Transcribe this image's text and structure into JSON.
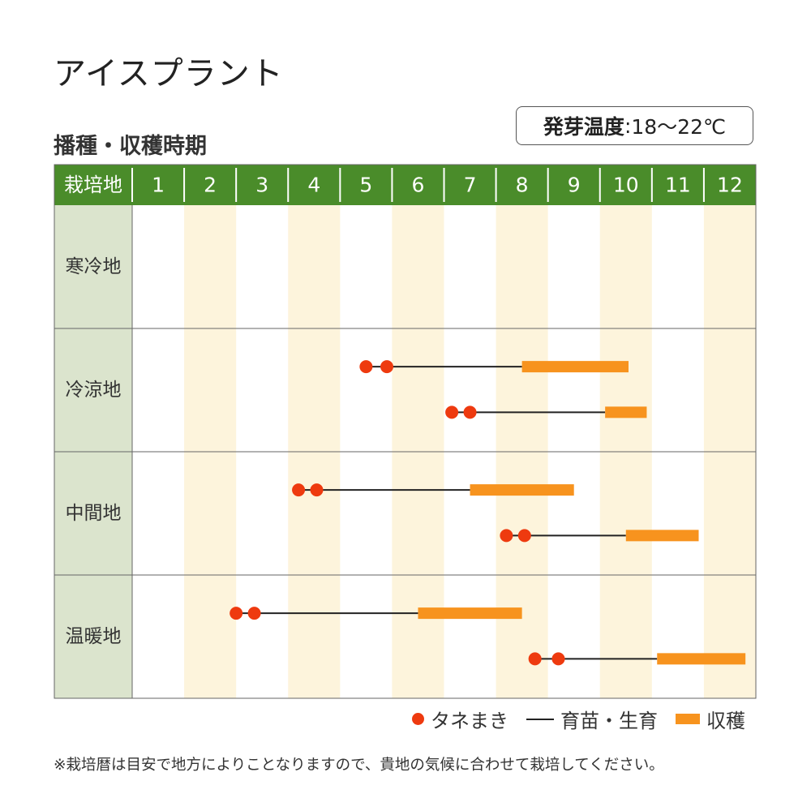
{
  "title": "アイスプラント",
  "temp_box": {
    "label": "発芽温度",
    "sep": ":",
    "value": "18〜22℃"
  },
  "chart_data": {
    "type": "gantt",
    "title": "播種・収穫時期",
    "header_label": "栽培地",
    "months": [
      "1",
      "2",
      "3",
      "4",
      "5",
      "6",
      "7",
      "8",
      "9",
      "10",
      "11",
      "12"
    ],
    "regions": [
      {
        "name": "寒冷地",
        "rows": []
      },
      {
        "name": "冷涼地",
        "rows": [
          {
            "sow": [
              5.5,
              5.9
            ],
            "grow_to": 8.5,
            "harvest": [
              8.5,
              10.55
            ]
          },
          {
            "sow": [
              7.15,
              7.5
            ],
            "grow_to": 10.1,
            "harvest": [
              10.1,
              10.9
            ]
          }
        ]
      },
      {
        "name": "中間地",
        "rows": [
          {
            "sow": [
              4.2,
              4.55
            ],
            "grow_to": 7.5,
            "harvest": [
              7.5,
              9.5
            ]
          },
          {
            "sow": [
              8.2,
              8.55
            ],
            "grow_to": 10.5,
            "harvest": [
              10.5,
              11.9
            ]
          }
        ]
      },
      {
        "name": "温暖地",
        "rows": [
          {
            "sow": [
              3.0,
              3.35
            ],
            "grow_to": 6.5,
            "harvest": [
              6.5,
              8.5
            ]
          },
          {
            "sow": [
              8.75,
              9.2
            ],
            "grow_to": 11.1,
            "harvest": [
              11.1,
              12.8
            ]
          }
        ]
      }
    ],
    "legend": {
      "sow": "タネまき",
      "grow": "育苗・生育",
      "harvest": "収穫"
    },
    "colors": {
      "header": "#4a8c2a",
      "header_text": "#ffffff",
      "label_bg": "#dbe4cd",
      "stripe": "#fdf4dc",
      "sow": "#ee3a0f",
      "grow": "#222222",
      "harvest": "#f7931e",
      "border": "#666666"
    }
  },
  "note": "※栽培暦は目安で地方によりことなりますので、貴地の気候に合わせて栽培してください。"
}
